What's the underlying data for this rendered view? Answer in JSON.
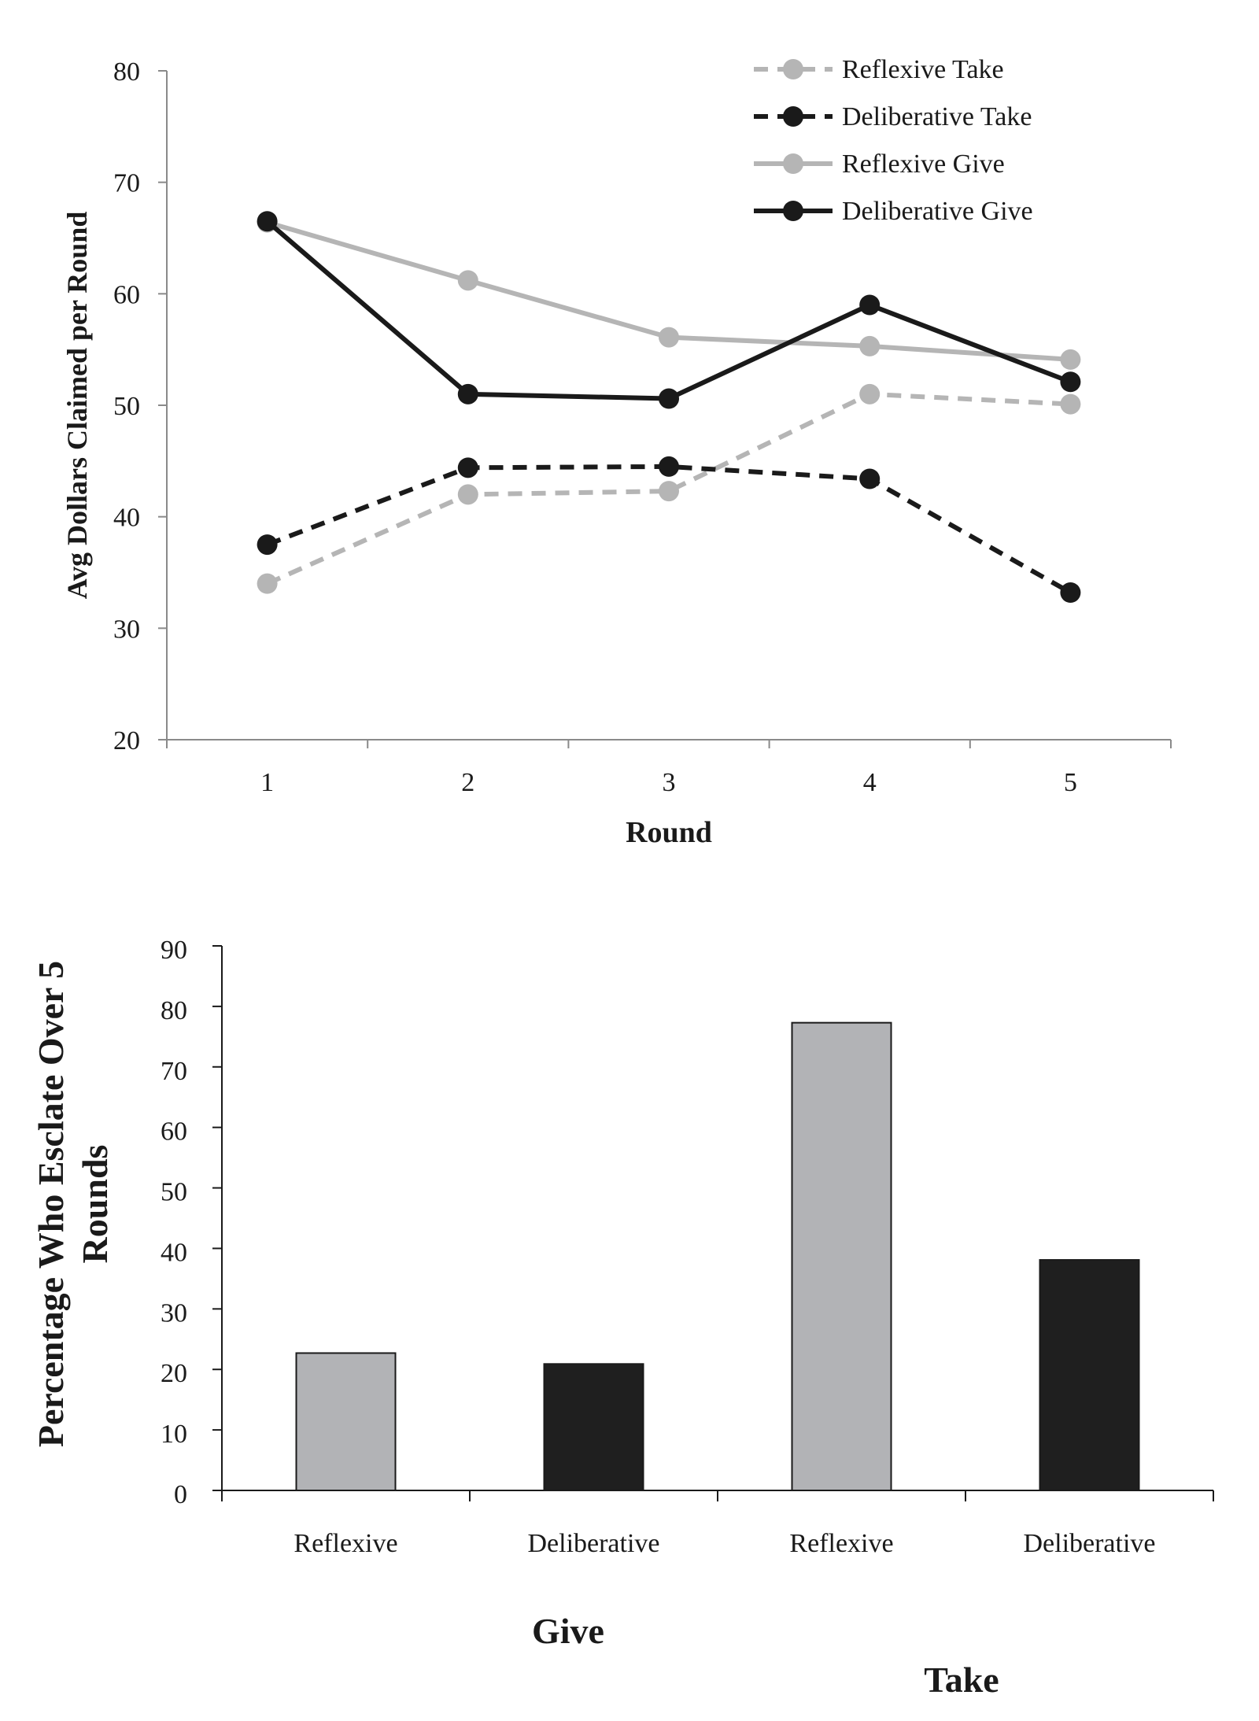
{
  "chart_data": [
    {
      "type": "line",
      "xlabel": "Round",
      "ylabel": "Avg Dollars Claimed per Round",
      "x": [
        1,
        2,
        3,
        4,
        5
      ],
      "ylim": [
        20,
        80
      ],
      "yticks": [
        20,
        30,
        40,
        50,
        60,
        70,
        80
      ],
      "legend_position": "top-right",
      "series": [
        {
          "name": "Reflexive Take",
          "values": [
            34,
            42,
            42.3,
            51,
            50.1
          ],
          "color": "#b5b5b5",
          "dashed": true
        },
        {
          "name": "Deliberative Take",
          "values": [
            37.5,
            44.4,
            44.5,
            43.4,
            33.2
          ],
          "color": "#1a1a1a",
          "dashed": true
        },
        {
          "name": "Reflexive Give",
          "values": [
            66.4,
            61.2,
            56.1,
            55.3,
            54.1
          ],
          "color": "#b5b5b5",
          "dashed": false
        },
        {
          "name": "Deliberative Give",
          "values": [
            66.5,
            51,
            50.6,
            59,
            52.1
          ],
          "color": "#1a1a1a",
          "dashed": false
        }
      ]
    },
    {
      "type": "bar",
      "ylabel": "Percentage Who Esclate Over 5 Rounds",
      "ylabel_lines": [
        "Percentage Who Esclate Over 5",
        "Rounds"
      ],
      "ylim": [
        0,
        90
      ],
      "yticks": [
        0,
        10,
        20,
        30,
        40,
        50,
        60,
        70,
        80,
        90
      ],
      "categories": [
        "Reflexive",
        "Deliberative",
        "Reflexive",
        "Deliberative"
      ],
      "groups": [
        {
          "label": "Give",
          "categories": [
            0,
            1
          ]
        },
        {
          "label": "Take",
          "categories": [
            2,
            3
          ]
        }
      ],
      "values": [
        22.7,
        20.9,
        77.3,
        38.1
      ],
      "colors": [
        "#b2b3b6",
        "#1f1f1f",
        "#b2b3b6",
        "#1f1f1f"
      ]
    }
  ]
}
